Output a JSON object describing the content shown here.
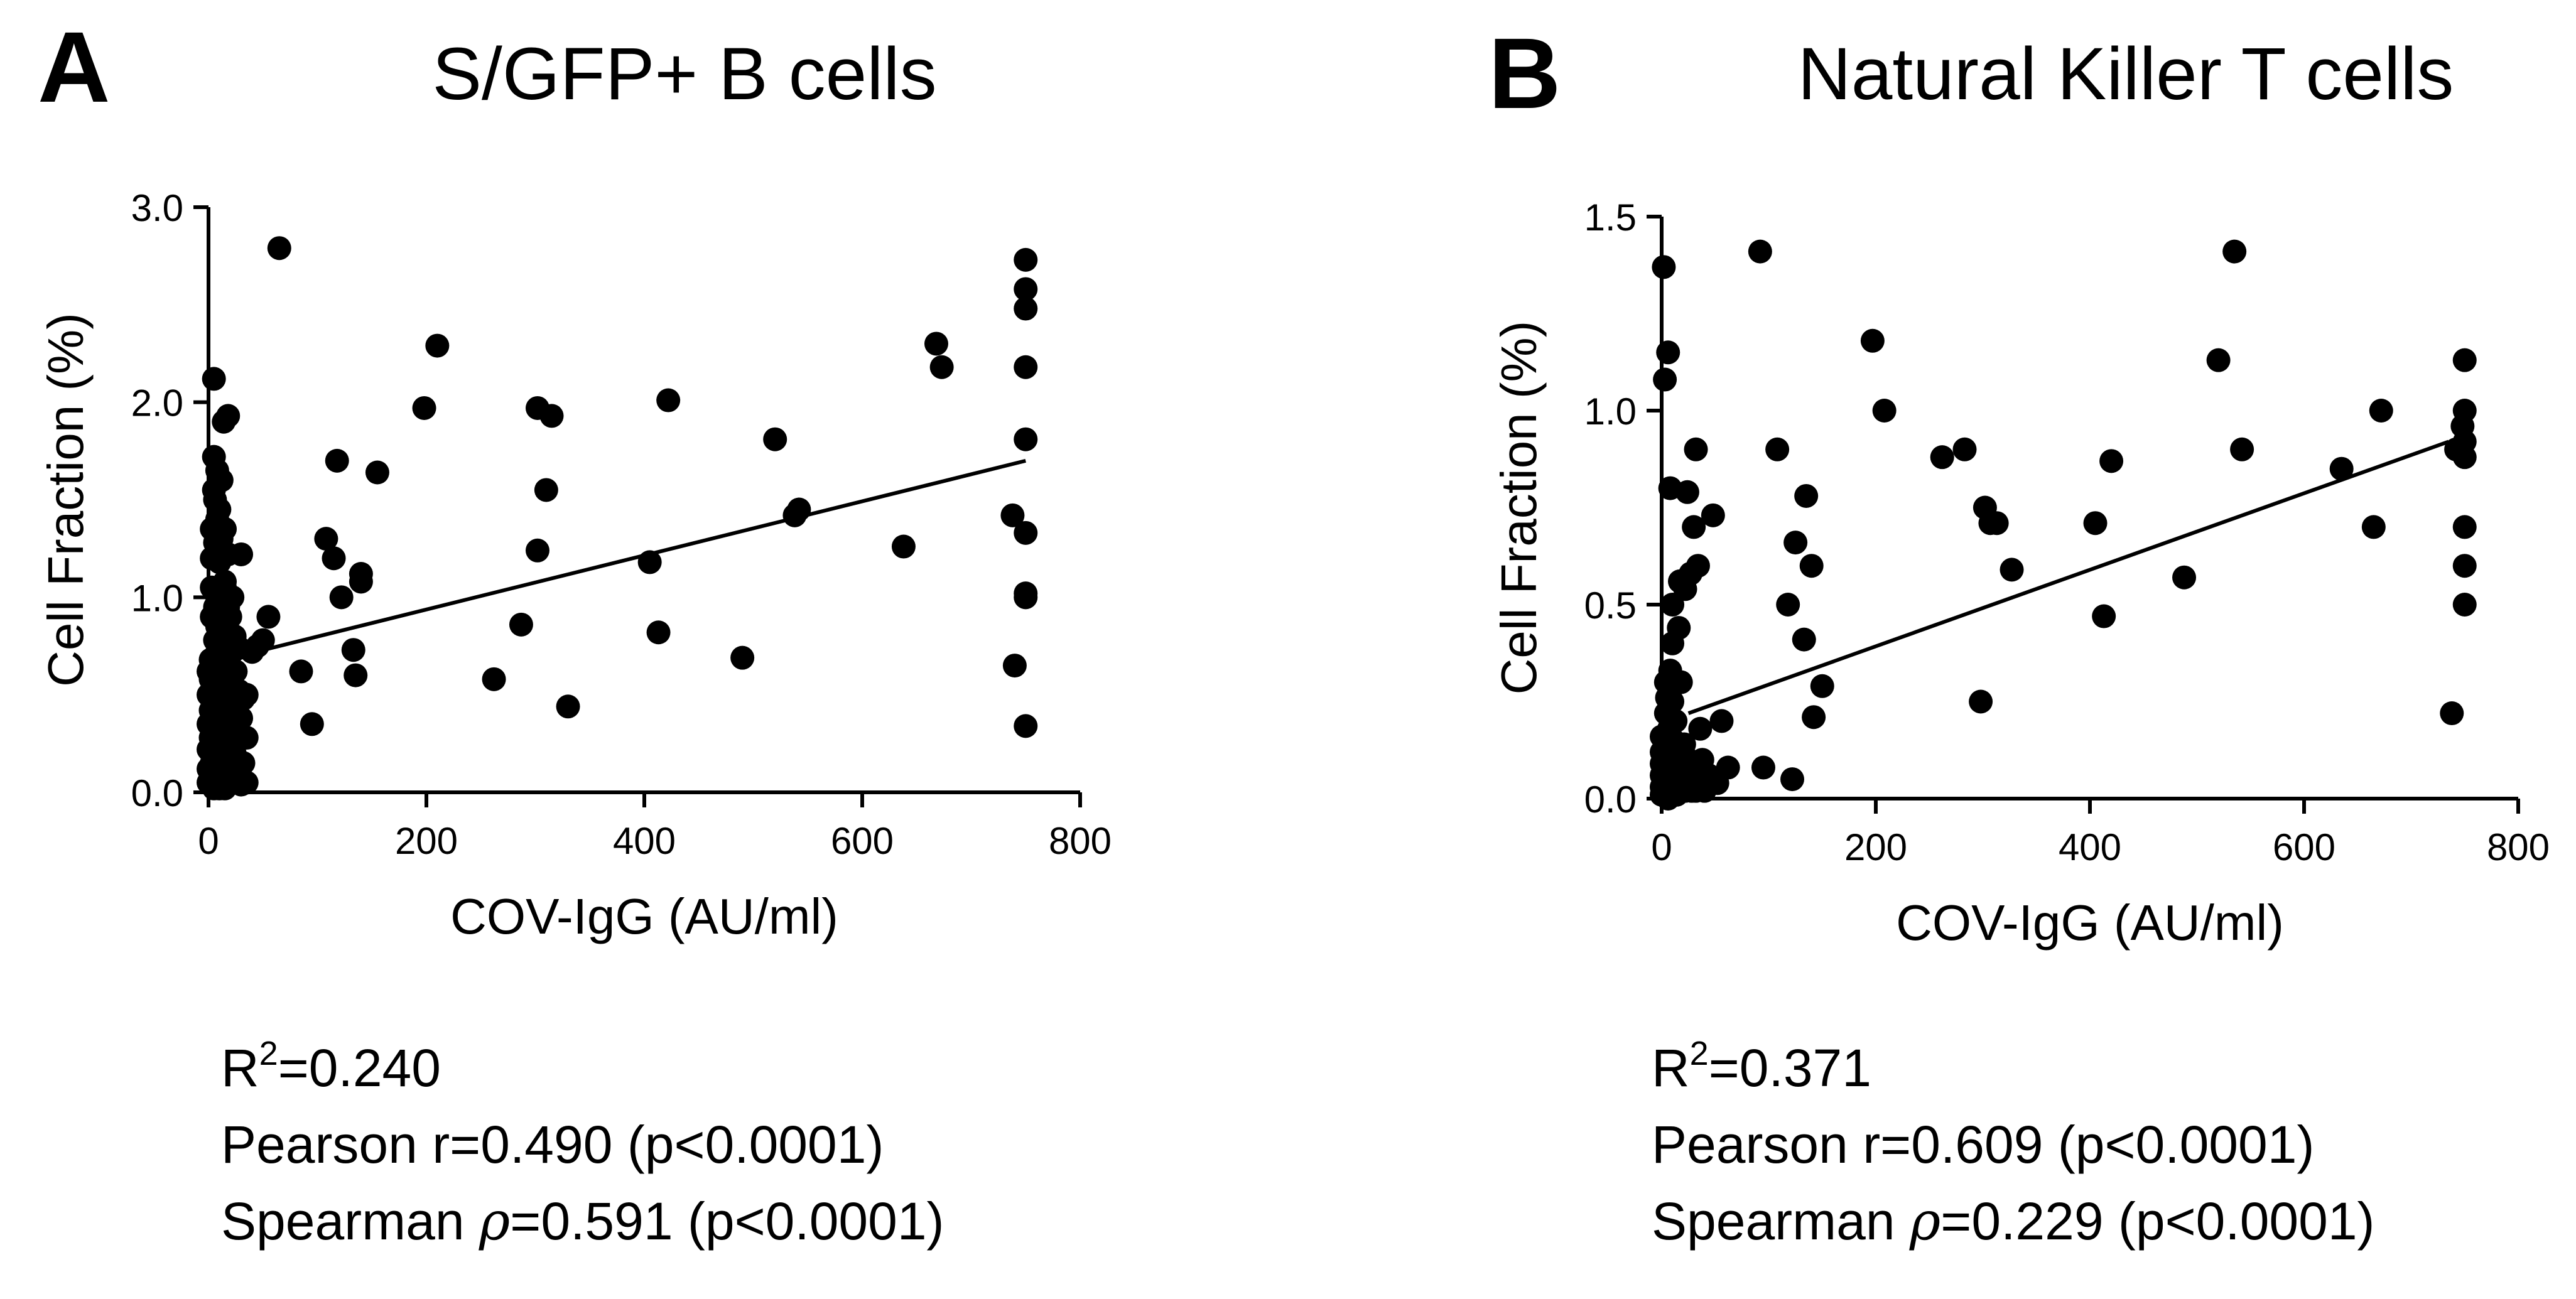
{
  "panels": [
    {
      "letter": "A",
      "title": "S/GFP+ B cells",
      "stats": {
        "r2_base": "R",
        "r2_sup": "2",
        "r2_value": "=0.240",
        "pearson": "Pearson r=0.490 (p<0.0001)",
        "spearman_prefix": "Spearman ",
        "spearman_symbol": "ρ",
        "spearman_value": "=0.591 (p<0.0001)"
      }
    },
    {
      "letter": "B",
      "title": "Natural Killer T cells",
      "stats": {
        "r2_base": "R",
        "r2_sup": "2",
        "r2_value": "=0.371",
        "pearson": "Pearson r=0.609 (p<0.0001)",
        "spearman_prefix": "Spearman ",
        "spearman_symbol": "ρ",
        "spearman_value": "=0.229 (p<0.0001)"
      }
    }
  ],
  "chart_data": [
    {
      "type": "scatter",
      "title": "S/GFP+ B cells",
      "xlabel": "COV-IgG (AU/ml)",
      "ylabel": "Cell Fraction (%)",
      "xlim": [
        0,
        800
      ],
      "ylim": [
        0,
        3.0
      ],
      "xticks": [
        0,
        200,
        400,
        600,
        800
      ],
      "xtick_labels": [
        "0",
        "200",
        "400",
        "600",
        "800"
      ],
      "yticks": [
        0,
        1.0,
        2.0,
        3.0
      ],
      "ytick_labels": [
        "0.0",
        "1.0",
        "2.0",
        "3.0"
      ],
      "fit_line": {
        "x": [
          0,
          750
        ],
        "y": [
          0.66,
          1.7
        ]
      },
      "points": [
        [
          0,
          0.05
        ],
        [
          0,
          0.12
        ],
        [
          0,
          0.22
        ],
        [
          0,
          0.35
        ],
        [
          0,
          0.5
        ],
        [
          0,
          0.62
        ],
        [
          2,
          0.08
        ],
        [
          2,
          0.28
        ],
        [
          2,
          0.42
        ],
        [
          2,
          0.58
        ],
        [
          2,
          0.68
        ],
        [
          3,
          0.9
        ],
        [
          3,
          1.05
        ],
        [
          3,
          1.2
        ],
        [
          3,
          1.35
        ],
        [
          3,
          0.15
        ],
        [
          5,
          2.12
        ],
        [
          5,
          1.72
        ],
        [
          5,
          1.55
        ],
        [
          5,
          0.02
        ],
        [
          6,
          0.4
        ],
        [
          6,
          0.78
        ],
        [
          6,
          0.95
        ],
        [
          6,
          1.28
        ],
        [
          6,
          1.5
        ],
        [
          6,
          0.2
        ],
        [
          8,
          0.1
        ],
        [
          8,
          0.3
        ],
        [
          8,
          0.55
        ],
        [
          8,
          0.72
        ],
        [
          8,
          1.0
        ],
        [
          8,
          1.4
        ],
        [
          8,
          1.65
        ],
        [
          8,
          0.85
        ],
        [
          10,
          0.02
        ],
        [
          10,
          0.25
        ],
        [
          10,
          0.45
        ],
        [
          10,
          0.65
        ],
        [
          10,
          0.9
        ],
        [
          10,
          1.18
        ],
        [
          10,
          1.45
        ],
        [
          10,
          1.25
        ],
        [
          12,
          0.06
        ],
        [
          12,
          0.15
        ],
        [
          12,
          0.35
        ],
        [
          12,
          0.6
        ],
        [
          12,
          0.75
        ],
        [
          12,
          1.6
        ],
        [
          12,
          1.3
        ],
        [
          12,
          0.5
        ],
        [
          14,
          1.9
        ],
        [
          15,
          0.02
        ],
        [
          15,
          0.2
        ],
        [
          15,
          0.5
        ],
        [
          15,
          0.8
        ],
        [
          15,
          1.05
        ],
        [
          15,
          1.35
        ],
        [
          15,
          0.4
        ],
        [
          18,
          1.93
        ],
        [
          18,
          0.1
        ],
        [
          18,
          0.3
        ],
        [
          18,
          0.55
        ],
        [
          18,
          0.7
        ],
        [
          18,
          0.95
        ],
        [
          18,
          1.22
        ],
        [
          20,
          0.12
        ],
        [
          20,
          0.4
        ],
        [
          20,
          0.6
        ],
        [
          20,
          0.9
        ],
        [
          22,
          0.05
        ],
        [
          22,
          0.25
        ],
        [
          22,
          0.45
        ],
        [
          22,
          0.72
        ],
        [
          22,
          1.0
        ],
        [
          24,
          0.2
        ],
        [
          24,
          0.5
        ],
        [
          24,
          0.8
        ],
        [
          25,
          0.35
        ],
        [
          25,
          0.62
        ],
        [
          27,
          0.08
        ],
        [
          28,
          0.3
        ],
        [
          28,
          0.52
        ],
        [
          28,
          0.74
        ],
        [
          30,
          0.04
        ],
        [
          30,
          0.38
        ],
        [
          30,
          1.22
        ],
        [
          32,
          0.15
        ],
        [
          32,
          0.48
        ],
        [
          35,
          0.05
        ],
        [
          35,
          0.28
        ],
        [
          35,
          0.5
        ],
        [
          15,
          1.08
        ],
        [
          10,
          0.78
        ],
        [
          20,
          0.2
        ],
        [
          5,
          0.3
        ],
        [
          25,
          0.1
        ],
        [
          40,
          0.72
        ],
        [
          45,
          0.75
        ],
        [
          50,
          0.78
        ],
        [
          55,
          0.9
        ],
        [
          65,
          2.79
        ],
        [
          85,
          0.62
        ],
        [
          95,
          0.35
        ],
        [
          108,
          1.3
        ],
        [
          115,
          1.2
        ],
        [
          118,
          1.7
        ],
        [
          122,
          1.0
        ],
        [
          133,
          0.73
        ],
        [
          135,
          0.6
        ],
        [
          140,
          1.12
        ],
        [
          140,
          1.08
        ],
        [
          155,
          1.64
        ],
        [
          198,
          1.97
        ],
        [
          210,
          2.29
        ],
        [
          262,
          0.58
        ],
        [
          287,
          0.86
        ],
        [
          302,
          1.97
        ],
        [
          302,
          1.24
        ],
        [
          310,
          1.55
        ],
        [
          315,
          1.93
        ],
        [
          330,
          0.44
        ],
        [
          405,
          1.18
        ],
        [
          413,
          0.82
        ],
        [
          422,
          2.01
        ],
        [
          490,
          0.69
        ],
        [
          520,
          1.81
        ],
        [
          538,
          1.42
        ],
        [
          542,
          1.45
        ],
        [
          638,
          1.26
        ],
        [
          668,
          2.3
        ],
        [
          673,
          2.18
        ],
        [
          738,
          1.42
        ],
        [
          740,
          0.65
        ],
        [
          750,
          2.73
        ],
        [
          750,
          2.58
        ],
        [
          750,
          2.48
        ],
        [
          750,
          2.18
        ],
        [
          750,
          1.81
        ],
        [
          750,
          1.33
        ],
        [
          750,
          1.02
        ],
        [
          750,
          1.0
        ],
        [
          750,
          0.34
        ]
      ]
    },
    {
      "type": "scatter",
      "title": "Natural Killer T cells",
      "xlabel": "COV-IgG (AU/ml)",
      "ylabel": "Cell Fraction (%)",
      "xlim": [
        0,
        800
      ],
      "ylim": [
        0,
        1.5
      ],
      "xticks": [
        0,
        200,
        400,
        600,
        800
      ],
      "xtick_labels": [
        "0",
        "200",
        "400",
        "600",
        "800"
      ],
      "yticks": [
        0,
        0.5,
        1.0,
        1.5
      ],
      "ytick_labels": [
        "0.0",
        "0.5",
        "1.0",
        "1.5"
      ],
      "fit_line": {
        "x": [
          25,
          735
        ],
        "y": [
          0.22,
          0.92
        ]
      },
      "points": [
        [
          0,
          0.01
        ],
        [
          0,
          0.03
        ],
        [
          0,
          0.06
        ],
        [
          0,
          0.09
        ],
        [
          0,
          0.12
        ],
        [
          0,
          0.16
        ],
        [
          2,
          1.37
        ],
        [
          3,
          1.08
        ],
        [
          4,
          0.3
        ],
        [
          4,
          0.22
        ],
        [
          4,
          0.02
        ],
        [
          5,
          0.05
        ],
        [
          5,
          0.14
        ],
        [
          5,
          0.26
        ],
        [
          6,
          1.15
        ],
        [
          6,
          0.0
        ],
        [
          7,
          0.09
        ],
        [
          7,
          0.18
        ],
        [
          8,
          0.8
        ],
        [
          8,
          0.33
        ],
        [
          8,
          0.12
        ],
        [
          9,
          0.02
        ],
        [
          9,
          0.07
        ],
        [
          10,
          0.5
        ],
        [
          10,
          0.4
        ],
        [
          10,
          0.25
        ],
        [
          11,
          0.15
        ],
        [
          12,
          0.04
        ],
        [
          12,
          0.1
        ],
        [
          13,
          0.2
        ],
        [
          14,
          0.01
        ],
        [
          14,
          0.06
        ],
        [
          15,
          0.12
        ],
        [
          16,
          0.44
        ],
        [
          17,
          0.56
        ],
        [
          18,
          0.3
        ],
        [
          18,
          0.03
        ],
        [
          20,
          0.08
        ],
        [
          21,
          0.14
        ],
        [
          22,
          0.54
        ],
        [
          22,
          0.02
        ],
        [
          24,
          0.79
        ],
        [
          24,
          0.05
        ],
        [
          25,
          0.1
        ],
        [
          27,
          0.58
        ],
        [
          28,
          0.02
        ],
        [
          30,
          0.7
        ],
        [
          30,
          0.06
        ],
        [
          32,
          0.9
        ],
        [
          32,
          0.02
        ],
        [
          34,
          0.6
        ],
        [
          36,
          0.18
        ],
        [
          38,
          0.1
        ],
        [
          40,
          0.02
        ],
        [
          44,
          0.06
        ],
        [
          48,
          0.73
        ],
        [
          52,
          0.04
        ],
        [
          56,
          0.2
        ],
        [
          62,
          0.08
        ],
        [
          92,
          1.41
        ],
        [
          95,
          0.08
        ],
        [
          108,
          0.9
        ],
        [
          118,
          0.5
        ],
        [
          122,
          0.05
        ],
        [
          125,
          0.66
        ],
        [
          133,
          0.41
        ],
        [
          135,
          0.78
        ],
        [
          140,
          0.6
        ],
        [
          142,
          0.21
        ],
        [
          150,
          0.29
        ],
        [
          197,
          1.18
        ],
        [
          208,
          1.0
        ],
        [
          262,
          0.88
        ],
        [
          283,
          0.9
        ],
        [
          298,
          0.25
        ],
        [
          302,
          0.75
        ],
        [
          307,
          0.71
        ],
        [
          313,
          0.71
        ],
        [
          327,
          0.59
        ],
        [
          405,
          0.71
        ],
        [
          413,
          0.47
        ],
        [
          420,
          0.87
        ],
        [
          488,
          0.57
        ],
        [
          520,
          1.13
        ],
        [
          535,
          1.41
        ],
        [
          542,
          0.9
        ],
        [
          635,
          0.85
        ],
        [
          665,
          0.7
        ],
        [
          672,
          1.0
        ],
        [
          738,
          0.22
        ],
        [
          742,
          0.9
        ],
        [
          748,
          0.96
        ],
        [
          750,
          1.13
        ],
        [
          750,
          1.0
        ],
        [
          750,
          0.92
        ],
        [
          750,
          0.88
        ],
        [
          750,
          0.7
        ],
        [
          750,
          0.6
        ],
        [
          750,
          0.5
        ]
      ]
    }
  ]
}
